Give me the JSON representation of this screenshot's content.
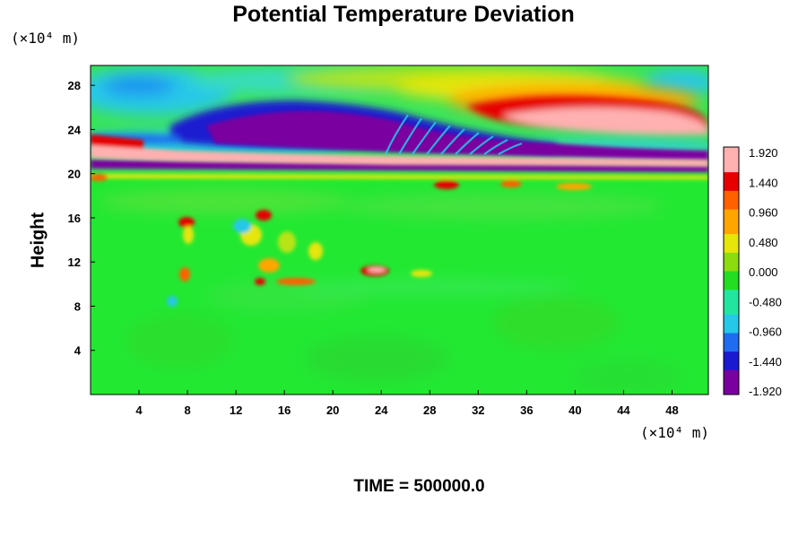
{
  "chart_data": {
    "type": "heatmap",
    "title": "Potential Temperature Deviation",
    "ylabel": "Height",
    "x_unit": "(×10⁴ m)",
    "y_unit": "(×10⁴ m)",
    "x_ticks": [
      4,
      8,
      12,
      16,
      20,
      24,
      28,
      32,
      36,
      40,
      44,
      48
    ],
    "y_ticks": [
      4,
      8,
      12,
      16,
      20,
      24,
      28
    ],
    "xlim": [
      0,
      51
    ],
    "ylim": [
      0,
      29.8
    ],
    "colorbar": {
      "labels": [
        "1.920",
        "1.440",
        "0.960",
        "0.480",
        "0.000",
        "-0.480",
        "-0.960",
        "-1.440",
        "-1.920"
      ],
      "range": [
        -1.92,
        1.92
      ],
      "colors_low_to_high": [
        "#7a00a0",
        "#1a1ad0",
        "#1f6cf0",
        "#25c8e8",
        "#22e6a0",
        "#22dd22",
        "#8cdc10",
        "#e6e60a",
        "#ffa500",
        "#ff6000",
        "#e60000",
        "#ffb0b0"
      ]
    },
    "annotation": "TIME = 500000.0"
  },
  "colors": {
    "background_field": "#22e832",
    "upper_cyan": "#25c8e8",
    "deep_blue": "#1a1ad0",
    "purple": "#7a00a0",
    "pink": "#ffb0b0",
    "red": "#e60000",
    "orange": "#ffa500",
    "yellow": "#e6e60a"
  }
}
